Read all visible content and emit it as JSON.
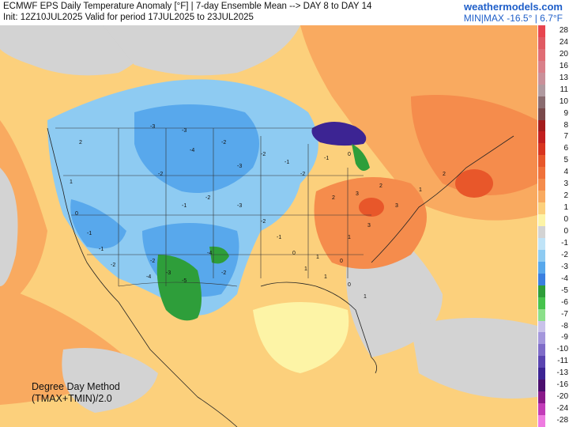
{
  "header": {
    "title": "ECMWF EPS Daily Temperature Anomaly [°F] | 7-day Ensemble Mean --> DAY 8 to DAY 14",
    "init": "Init: 12Z10JUL2025 Valid for period 17JUL2025 to 23JUL2025",
    "brand": "weathermodels.com",
    "minmax": "MIN|MAX -16.5° | 6.7°F"
  },
  "method": {
    "line1": "Degree Day Method",
    "line2": "(TMAX+TMIN)/2.0"
  },
  "colorbar": {
    "entries": [
      {
        "label": "28",
        "color": "#e8454f"
      },
      {
        "label": "24",
        "color": "#e05a63"
      },
      {
        "label": "20",
        "color": "#e06d75"
      },
      {
        "label": "16",
        "color": "#d9808a"
      },
      {
        "label": "13",
        "color": "#c9909a"
      },
      {
        "label": "11",
        "color": "#b09aa0"
      },
      {
        "label": "10",
        "color": "#8a6c70"
      },
      {
        "label": "9",
        "color": "#7a4a4c"
      },
      {
        "label": "8",
        "color": "#a31c1c"
      },
      {
        "label": "7",
        "color": "#c21f1f"
      },
      {
        "label": "6",
        "color": "#d8341f"
      },
      {
        "label": "5",
        "color": "#e8572a"
      },
      {
        "label": "4",
        "color": "#f0713a"
      },
      {
        "label": "3",
        "color": "#f58c4c"
      },
      {
        "label": "2",
        "color": "#f9aa60"
      },
      {
        "label": "1",
        "color": "#fcd07c"
      },
      {
        "label": "0",
        "color": "#fdf4a6"
      },
      {
        "label": "0",
        "color": "#d3d3d3"
      },
      {
        "label": "-1",
        "color": "#bfe3f7"
      },
      {
        "label": "-2",
        "color": "#8ecbf2"
      },
      {
        "label": "-3",
        "color": "#58a8ec"
      },
      {
        "label": "-4",
        "color": "#3a7fe0"
      },
      {
        "label": "-5",
        "color": "#2e9e3a"
      },
      {
        "label": "-6",
        "color": "#46c34c"
      },
      {
        "label": "-7",
        "color": "#8be08a"
      },
      {
        "label": "-8",
        "color": "#c9c2ea"
      },
      {
        "label": "-9",
        "color": "#a497dc"
      },
      {
        "label": "-10",
        "color": "#7f6cc8"
      },
      {
        "label": "-11",
        "color": "#5a44b0"
      },
      {
        "label": "-13",
        "color": "#3c2493"
      },
      {
        "label": "-16",
        "color": "#4b0f6e"
      },
      {
        "label": "-20",
        "color": "#8a1a8a"
      },
      {
        "label": "-24",
        "color": "#c23cb8"
      },
      {
        "label": "-28",
        "color": "#ee7be0"
      }
    ]
  },
  "map_labels": {
    "w1": "2",
    "w2": "1",
    "w3": "0",
    "w4": "-1",
    "w5": "-1",
    "w6": "-2",
    "n1": "-3",
    "n2": "-3",
    "n3": "-4",
    "n4": "-2",
    "n5": "-3",
    "n6": "-2",
    "n7": "-1",
    "n8": "-2",
    "c1": "-1",
    "c2": "-2",
    "c3": "-3",
    "c4": "-2",
    "c5": "-1",
    "c6": "0",
    "c7": "1",
    "sw1": "-2",
    "sw2": "-4",
    "sw3": "-3",
    "sw4": "-5",
    "sw5": "-4",
    "sw6": "-2",
    "e1": "2",
    "e2": "3",
    "e3": "2",
    "e4": "3",
    "e5": "1",
    "e6": "2",
    "e7": "3",
    "e8": "1",
    "se1": "1",
    "se2": "0",
    "se3": "1",
    "se4": "0",
    "se5": "1",
    "gl1": "-2",
    "gl2": "-1",
    "gl3": "0"
  }
}
